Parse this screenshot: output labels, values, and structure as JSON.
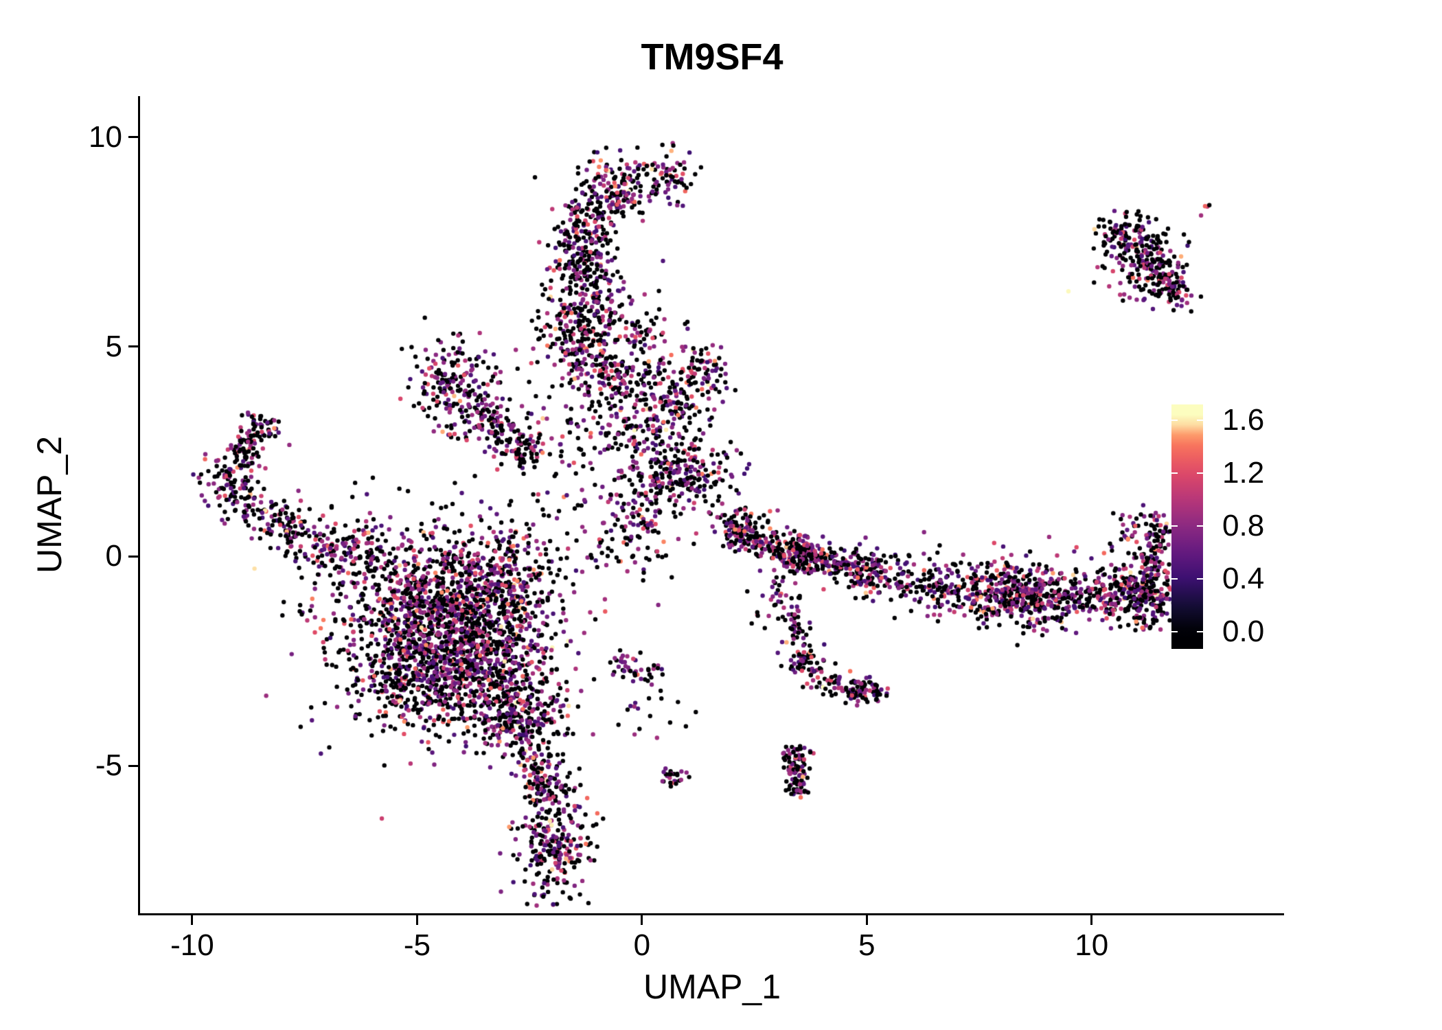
{
  "chart_data": {
    "type": "scatter",
    "title": "TM9SF4",
    "xlabel": "UMAP_1",
    "ylabel": "UMAP_2",
    "xlim": [
      -11.16,
      14.28
    ],
    "ylim": [
      -8.52,
      10.98
    ],
    "x_ticks": [
      -10,
      -5,
      0,
      5,
      10
    ],
    "y_ticks": [
      -5,
      0,
      5,
      10
    ],
    "grid": false,
    "point_radius": 3.2,
    "background": "#ffffff",
    "axis_color": "#000000",
    "legend": {
      "position": "right",
      "ticks": [
        1.6,
        1.2,
        0.8,
        0.4,
        0.0
      ],
      "min": 0.0,
      "max": 1.6,
      "colormap": "magma",
      "colormap_stops": [
        {
          "t": 0.0,
          "c": "#000004"
        },
        {
          "t": 0.125,
          "c": "#140e36"
        },
        {
          "t": 0.25,
          "c": "#3b0f70"
        },
        {
          "t": 0.375,
          "c": "#641a80"
        },
        {
          "t": 0.5,
          "c": "#8c2981"
        },
        {
          "t": 0.625,
          "c": "#b73779"
        },
        {
          "t": 0.75,
          "c": "#de4968"
        },
        {
          "t": 0.875,
          "c": "#f7705c"
        },
        {
          "t": 0.94,
          "c": "#fea16e"
        },
        {
          "t": 1.0,
          "c": "#fcfdbf"
        }
      ]
    },
    "expression_distribution": {
      "zero_fraction": 0.52,
      "low_fraction": 0.3,
      "low_range": [
        0.4,
        0.9
      ],
      "mid_fraction": 0.13,
      "mid_range": [
        0.8,
        1.25
      ],
      "high_fraction": 0.05,
      "high_range": [
        1.2,
        1.6
      ]
    },
    "clusters": [
      {
        "k": "b",
        "x": -0.7,
        "y": 8.75,
        "sx": 0.5,
        "sy": 0.4,
        "n": 170
      },
      {
        "k": "b",
        "x": 0.55,
        "y": 9.0,
        "sx": 0.35,
        "sy": 0.3,
        "n": 70
      },
      {
        "k": "l",
        "x1": -1.15,
        "y1": 8.3,
        "x2": -1.35,
        "y2": 6.6,
        "w": 0.33,
        "n": 200
      },
      {
        "k": "b",
        "x": -1.2,
        "y": 5.9,
        "sx": 0.55,
        "sy": 0.6,
        "n": 220
      },
      {
        "k": "b",
        "x": -1.35,
        "y": 5.05,
        "sx": 0.45,
        "sy": 0.35,
        "n": 90
      },
      {
        "k": "b",
        "x": -0.85,
        "y": 4.35,
        "sx": 0.45,
        "sy": 0.4,
        "n": 110
      },
      {
        "k": "b",
        "x": -0.6,
        "y": 3.4,
        "sx": 0.6,
        "sy": 0.6,
        "n": 70
      },
      {
        "k": "b",
        "x": -4.25,
        "y": 4.15,
        "sx": 0.5,
        "sy": 0.55,
        "n": 170
      },
      {
        "k": "l",
        "x1": -3.9,
        "y1": 3.55,
        "x2": -2.35,
        "y2": 2.45,
        "w": 0.22,
        "n": 130
      },
      {
        "k": "b",
        "x": -3.3,
        "y": 3.3,
        "sx": 0.7,
        "sy": 0.6,
        "n": 70
      },
      {
        "k": "b",
        "x": 0.65,
        "y": 3.95,
        "sx": 0.55,
        "sy": 0.5,
        "n": 150
      },
      {
        "k": "b",
        "x": 0.4,
        "y": 2.9,
        "sx": 0.6,
        "sy": 0.5,
        "n": 110
      },
      {
        "k": "b",
        "x": 0.8,
        "y": 1.85,
        "sx": 0.6,
        "sy": 0.4,
        "n": 200
      },
      {
        "k": "b",
        "x": 1.35,
        "y": 4.55,
        "sx": 0.3,
        "sy": 0.25,
        "n": 40
      },
      {
        "k": "b",
        "x": 0.05,
        "y": 5.3,
        "sx": 0.25,
        "sy": 0.25,
        "n": 35
      },
      {
        "k": "b",
        "x": -0.15,
        "y": 1.0,
        "sx": 0.45,
        "sy": 0.55,
        "n": 90
      },
      {
        "k": "b",
        "x": -1.5,
        "y": 2.3,
        "sx": 0.9,
        "sy": 0.9,
        "n": 60
      },
      {
        "k": "b",
        "x": -9.15,
        "y": 1.75,
        "sx": 0.3,
        "sy": 0.3,
        "n": 80
      },
      {
        "k": "l",
        "x1": -9.0,
        "y1": 2.2,
        "x2": -8.35,
        "y2": 3.25,
        "w": 0.25,
        "n": 110
      },
      {
        "k": "l",
        "x1": -8.9,
        "y1": 1.3,
        "x2": -7.3,
        "y2": 0.35,
        "w": 0.3,
        "n": 140
      },
      {
        "k": "l",
        "x1": -7.1,
        "y1": 0.2,
        "x2": -6.0,
        "y2": -0.3,
        "w": 0.35,
        "n": 110
      },
      {
        "k": "b",
        "x": -5.9,
        "y": 0.5,
        "sx": 0.5,
        "sy": 0.3,
        "n": 30
      },
      {
        "k": "b",
        "x": -4.6,
        "y": -1.2,
        "sx": 1.05,
        "sy": 0.85,
        "n": 850
      },
      {
        "k": "b",
        "x": -3.6,
        "y": -2.6,
        "sx": 0.85,
        "sy": 0.8,
        "n": 650
      },
      {
        "k": "b",
        "x": -5.2,
        "y": -2.9,
        "sx": 0.65,
        "sy": 0.6,
        "n": 280
      },
      {
        "k": "b",
        "x": -3.0,
        "y": -0.5,
        "sx": 0.6,
        "sy": 0.65,
        "n": 260
      },
      {
        "k": "b",
        "x": -2.7,
        "y": -3.9,
        "sx": 0.5,
        "sy": 0.5,
        "n": 200
      },
      {
        "k": "b",
        "x": -4.5,
        "y": -1.7,
        "sx": 1.7,
        "sy": 1.5,
        "n": 260
      },
      {
        "k": "l",
        "x1": -2.5,
        "y1": -4.6,
        "x2": -2.0,
        "y2": -5.7,
        "w": 0.28,
        "n": 140
      },
      {
        "k": "b",
        "x": -1.95,
        "y": -6.9,
        "sx": 0.4,
        "sy": 0.65,
        "n": 240
      },
      {
        "k": "l",
        "x1": -0.6,
        "y1": -2.6,
        "x2": 0.35,
        "y2": -2.85,
        "w": 0.18,
        "n": 45
      },
      {
        "k": "b",
        "x": 0.0,
        "y": -3.6,
        "sx": 0.6,
        "sy": 0.4,
        "n": 18
      },
      {
        "k": "b",
        "x": 0.65,
        "y": -5.25,
        "sx": 0.14,
        "sy": 0.12,
        "n": 25
      },
      {
        "k": "l",
        "x1": 1.8,
        "y1": 0.75,
        "x2": 4.2,
        "y2": -0.15,
        "w": 0.22,
        "n": 240
      },
      {
        "k": "b",
        "x": 2.15,
        "y": 0.55,
        "sx": 0.25,
        "sy": 0.2,
        "n": 70
      },
      {
        "k": "b",
        "x": 3.3,
        "y": 0.1,
        "sx": 0.3,
        "sy": 0.25,
        "n": 80
      },
      {
        "k": "l",
        "x1": 4.2,
        "y1": -0.1,
        "x2": 5.3,
        "y2": -0.45,
        "w": 0.22,
        "n": 90
      },
      {
        "k": "b",
        "x": 5.05,
        "y": -0.4,
        "sx": 0.25,
        "sy": 0.25,
        "n": 60
      },
      {
        "k": "l",
        "x1": 5.6,
        "y1": -0.6,
        "x2": 8.6,
        "y2": -1.05,
        "w": 0.3,
        "n": 320
      },
      {
        "k": "l",
        "x1": 8.6,
        "y1": -1.05,
        "x2": 11.45,
        "y2": -0.8,
        "w": 0.32,
        "n": 360
      },
      {
        "k": "b",
        "x": 8.3,
        "y": -0.9,
        "sx": 0.45,
        "sy": 0.4,
        "n": 130
      },
      {
        "k": "b",
        "x": 11.15,
        "y": -0.9,
        "sx": 0.4,
        "sy": 0.45,
        "n": 160
      },
      {
        "k": "l",
        "x1": 11.35,
        "y1": -0.25,
        "x2": 11.5,
        "y2": 0.95,
        "w": 0.16,
        "n": 80
      },
      {
        "k": "b",
        "x": 10.95,
        "y": 0.75,
        "sx": 0.2,
        "sy": 0.3,
        "n": 25
      },
      {
        "k": "b",
        "x": 8.0,
        "y": -0.2,
        "sx": 1.6,
        "sy": 0.45,
        "n": 50
      },
      {
        "k": "l",
        "x1": 3.0,
        "y1": -0.65,
        "x2": 3.6,
        "y2": -1.95,
        "w": 0.14,
        "n": 60
      },
      {
        "k": "b",
        "x": 3.5,
        "y": -2.45,
        "sx": 0.22,
        "sy": 0.25,
        "n": 55
      },
      {
        "k": "l",
        "x1": 3.7,
        "y1": -2.75,
        "x2": 5.0,
        "y2": -3.3,
        "w": 0.16,
        "n": 85
      },
      {
        "k": "b",
        "x": 5.05,
        "y": -3.25,
        "sx": 0.18,
        "sy": 0.15,
        "n": 35
      },
      {
        "k": "l",
        "x1": 3.38,
        "y1": -4.55,
        "x2": 3.52,
        "y2": -5.65,
        "w": 0.14,
        "n": 110
      },
      {
        "k": "b",
        "x": 2.6,
        "y": -1.2,
        "sx": 0.15,
        "sy": 0.3,
        "n": 8
      },
      {
        "k": "b",
        "x": 10.6,
        "y": 7.75,
        "sx": 0.3,
        "sy": 0.25,
        "n": 60
      },
      {
        "k": "b",
        "x": 11.2,
        "y": 7.3,
        "sx": 0.4,
        "sy": 0.35,
        "n": 100
      },
      {
        "k": "b",
        "x": 11.55,
        "y": 6.6,
        "sx": 0.3,
        "sy": 0.3,
        "n": 80
      },
      {
        "k": "b",
        "x": 11.85,
        "y": 6.3,
        "sx": 0.2,
        "sy": 0.2,
        "n": 35
      },
      {
        "k": "b",
        "x": 11.0,
        "y": 7.0,
        "sx": 0.55,
        "sy": 0.55,
        "n": 60
      },
      {
        "k": "b",
        "x": 12.5,
        "y": 8.35,
        "sx": 0.06,
        "sy": 0.06,
        "n": 3
      },
      {
        "k": "b",
        "x": -6.85,
        "y": 1.15,
        "sx": 0.05,
        "sy": 0.05,
        "n": 2
      },
      {
        "k": "b",
        "x": 1.05,
        "y": 5.55,
        "sx": 0.08,
        "sy": 0.08,
        "n": 3
      },
      {
        "k": "b",
        "x": 0.3,
        "y": 6.3,
        "sx": 0.05,
        "sy": 0.05,
        "n": 1
      },
      {
        "k": "b",
        "x": -0.5,
        "y": 0.2,
        "sx": 0.8,
        "sy": 0.5,
        "n": 40
      }
    ]
  }
}
